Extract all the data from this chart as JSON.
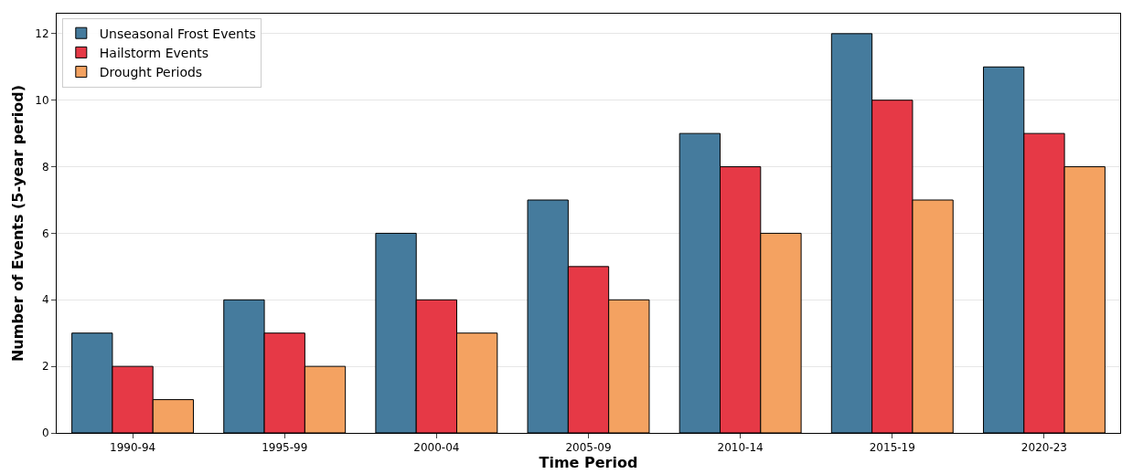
{
  "chart_data": {
    "type": "bar",
    "xlabel": "Time Period",
    "ylabel": "Number of Events (5-year period)",
    "categories": [
      "1990-94",
      "1995-99",
      "2000-04",
      "2005-09",
      "2010-14",
      "2015-19",
      "2020-23"
    ],
    "series": [
      {
        "name": "Unseasonal Frost Events",
        "color": "#457b9d",
        "values": [
          3,
          4,
          6,
          7,
          9,
          12,
          11
        ]
      },
      {
        "name": "Hailstorm Events",
        "color": "#e63946",
        "values": [
          2,
          3,
          4,
          5,
          8,
          10,
          9
        ]
      },
      {
        "name": "Drought Periods",
        "color": "#f4a261",
        "values": [
          1,
          2,
          3,
          4,
          6,
          7,
          8
        ]
      }
    ],
    "ylim": [
      0,
      12.6
    ],
    "yticks": [
      0,
      2,
      4,
      6,
      8,
      10,
      12
    ],
    "grid": "y",
    "legend": "top left"
  }
}
